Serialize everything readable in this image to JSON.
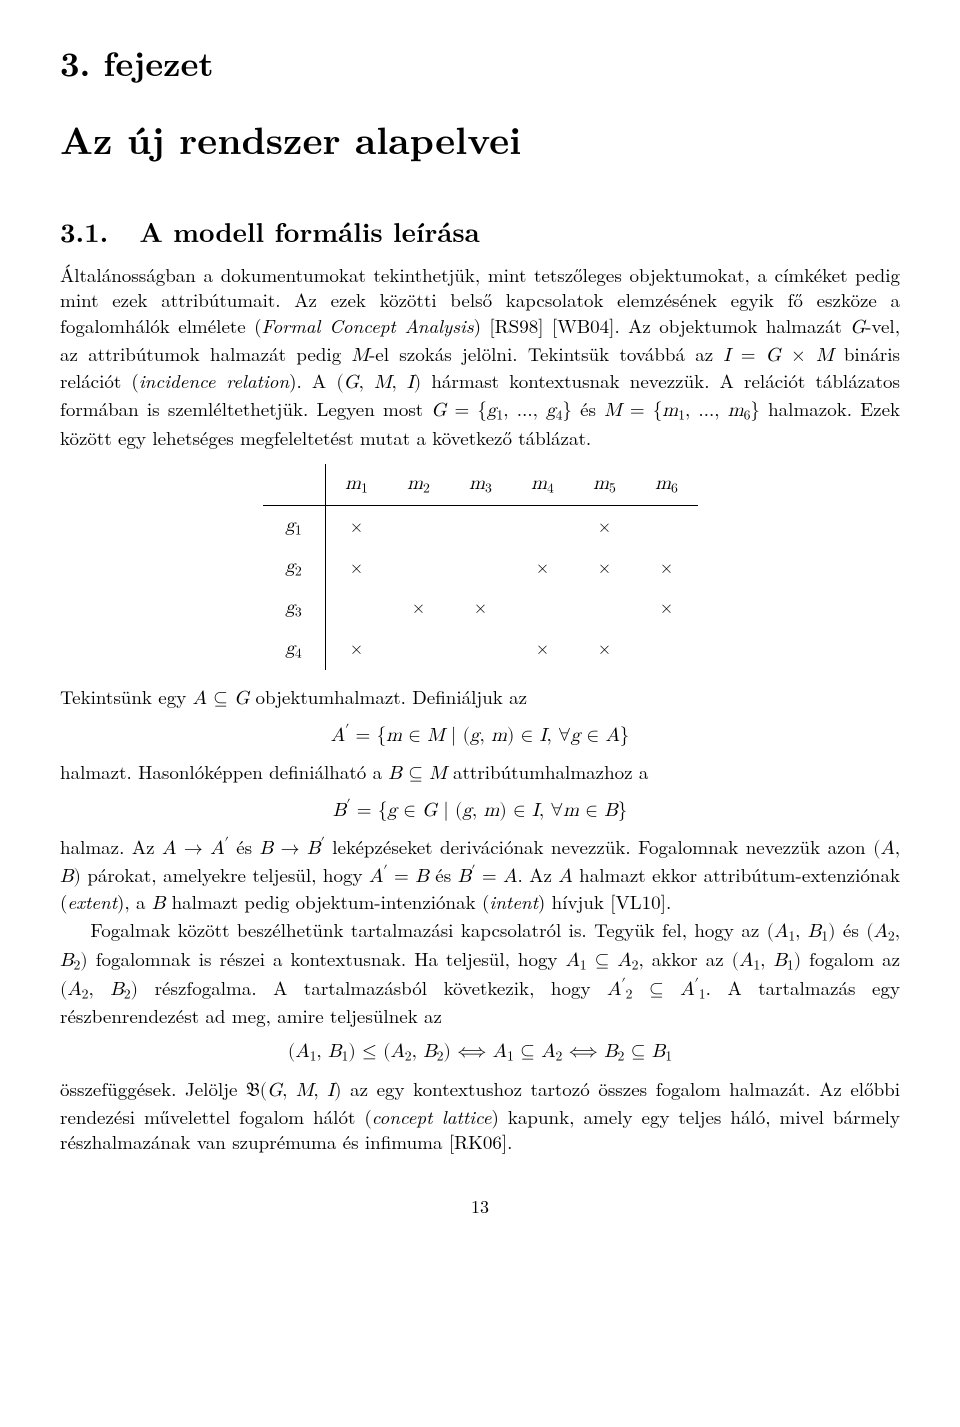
{
  "chapter": {
    "label": "3. fejezet",
    "title": "Az új rendszer alapelvei"
  },
  "section": {
    "number": "3.1.",
    "title": "A modell formális leírása"
  },
  "para1_plain": "Általánosságban a dokumentumokat tekinthetjük, mint tetszőleges objektumokat, a címkéket pedig mint ezek attribútumait. Az ezek közötti belső kapcsolatok elemzésének egyik fő eszköze a fogalomhálók elmélete (",
  "para1_italic": "Formal Concept Analysis",
  "para1_after": ") [RS98] [WB04]. Az objektumok halmazát ",
  "g_text": "G",
  "para1_b": "-vel, az attribútumok halmazát pedig ",
  "m_text": "M",
  "para1_c": "-el szokás jelölni. Tekintsük továbbá az ",
  "rel_def": "I = G × M",
  "para1_d": " bináris relációt (",
  "incidence": "incidence relation",
  "para1_e": "). A ",
  "triple": "(G, M, I)",
  "para1_f": " hármast kontextusnak nevezzük. A relációt táblázatos formában is szemléltethetjük. Legyen most ",
  "g_set": "G = {g₁, …, g₄}",
  "para1_g": " és ",
  "m_set": "M = {m₁, …, m₆}",
  "para1_h": " halmazok. Ezek között egy lehetséges megfeleltetést mutat a következő táblázat.",
  "table": {
    "columns": [
      "m₁",
      "m₂",
      "m₃",
      "m₄",
      "m₅",
      "m₆"
    ],
    "rows": [
      "g₁",
      "g₂",
      "g₃",
      "g₄"
    ],
    "marks": [
      [
        1,
        0,
        0,
        0,
        1,
        0
      ],
      [
        1,
        0,
        0,
        1,
        1,
        1
      ],
      [
        0,
        1,
        1,
        0,
        0,
        1
      ],
      [
        1,
        0,
        0,
        1,
        1,
        0
      ]
    ],
    "mark_symbol": "×",
    "border_color": "#000000",
    "font_size": 19
  },
  "after_table_a": "Tekintsünk egy ",
  "sub_AG": "A ⊆ G",
  "after_table_b": " objektumhalmazt. Definiáljuk az",
  "eq1": "A′ = {m ∈ M | (g, m) ∈ I, ∀g ∈ A}",
  "halmazt_a": "halmazt. Hasonlóképpen definiálható a ",
  "sub_BM": "B ⊆ M",
  "halmazt_b": " attribútumhalmazhoz a",
  "eq2": "B′ = {g ∈ G | (g, m) ∈ I, ∀m ∈ B}",
  "para2_a": "halmaz. Az ",
  "map_a": "A → A′",
  "para2_b": " és ",
  "map_b": "B → B′",
  "para2_c": " leképzéseket derivációnak nevezzük. Fogalomnak nevezzük azon ",
  "pair_ab": "(A, B)",
  "para2_d": " párokat, amelyekre teljesül, hogy ",
  "aprime_b": "A′ = B",
  "para2_e": " és ",
  "bprime_a": "B′ = A",
  "para2_f": ". Az ",
  "a_only": "A",
  "para2_g": " halmazt ekkor attribútum-extenziónak (",
  "extent": "extent",
  "para2_h": "), a ",
  "b_only": "B",
  "para2_i": " halmazt pedig objektum-intenziónak (",
  "intent": "intent",
  "para2_j": ") hívjuk [VL10].",
  "para3_a": "Fogalmak között beszélhetünk tartalmazási kapcsolatról is. Tegyük fel, hogy az ",
  "pair_1": "(A₁, B₁)",
  "para3_b": " és ",
  "pair_2": "(A₂, B₂)",
  "para3_c": " fogalomnak is részei a kontextusnak. Ha teljesül, hogy ",
  "a1a2": "A₁ ⊆ A₂",
  "para3_d": ", akkor az ",
  "para3_e": " fogalom az ",
  "para3_f": " részfogalma. A tartalmazásból következik, hogy ",
  "a2a1p": "A′₂ ⊆ A′₁",
  "para3_g": ". A tartalmazás egy részbenrendezést ad meg, amire teljesülnek az",
  "eq3": "(A₁, B₁) ≤ (A₂, B₂) ⟺ A₁ ⊆ A₂ ⟺ B₂ ⊆ B₁",
  "para4_a": "összefüggések. Jelölje ",
  "frak_b": "𝔅",
  "bgmi": "(G, M, I)",
  "para4_b": " az egy kontextushoz tartozó összes fogalom halmazát. Az előbbi rendezési művelettel fogalom hálót (",
  "concept_lattice": "concept lattice",
  "para4_c": ") kapunk, amely egy teljes háló, mivel bármely részhalmazának van szuprémuma és infimuma [RK06].",
  "refs": {
    "rs98": "[RS98]",
    "wb04": "[WB04]",
    "vl10": "[VL10]",
    "rk06": "[RK06]"
  },
  "page_number": "13",
  "colors": {
    "text": "#000000",
    "background": "#ffffff"
  }
}
